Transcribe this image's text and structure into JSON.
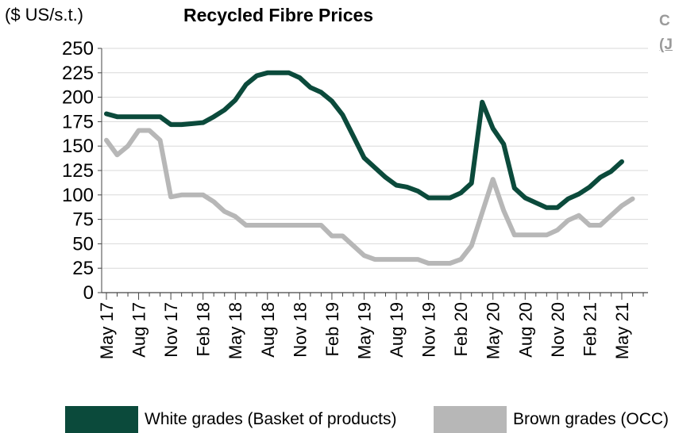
{
  "header": {
    "unit_label": "($ US/s.t.)",
    "title": "Recycled Fibre Prices",
    "side_title_line1": "C",
    "side_title_line2": "(J"
  },
  "colors": {
    "white_grades": "#0b4a3b",
    "brown_grades": "#b7b7b7",
    "grid": "#d9d9d9",
    "axis": "#444444"
  },
  "chart_data": {
    "type": "line",
    "title": "Recycled Fibre Prices",
    "ylabel": "($ US/s.t.)",
    "xlabel": "",
    "ylim": [
      0,
      250
    ],
    "yticks": [
      0,
      25,
      50,
      75,
      100,
      125,
      150,
      175,
      200,
      225,
      250
    ],
    "grid": true,
    "legend": "bottom",
    "x": [
      "May 17",
      "Jun 17",
      "Jul 17",
      "Aug 17",
      "Sep 17",
      "Oct 17",
      "Nov 17",
      "Dec 17",
      "Jan 18",
      "Feb 18",
      "Mar 18",
      "Apr 18",
      "May 18",
      "Jun 18",
      "Jul 18",
      "Aug 18",
      "Sep 18",
      "Oct 18",
      "Nov 18",
      "Dec 18",
      "Jan 19",
      "Feb 19",
      "Mar 19",
      "Apr 19",
      "May 19",
      "Jun 19",
      "Jul 19",
      "Aug 19",
      "Sep 19",
      "Oct 19",
      "Nov 19",
      "Dec 19",
      "Jan 20",
      "Feb 20",
      "Mar 20",
      "Apr 20",
      "May 20",
      "Jun 20",
      "Jul 20",
      "Aug 20",
      "Sep 20",
      "Oct 20",
      "Nov 20",
      "Dec 20",
      "Jan 21",
      "Feb 21",
      "Mar 21",
      "Apr 21",
      "May 21",
      "Jun 21",
      "Jul 21"
    ],
    "xtick_labels": [
      "May 17",
      "Aug 17",
      "Nov 17",
      "Feb 18",
      "May 18",
      "Aug 18",
      "Nov 18",
      "Feb 19",
      "May 19",
      "Aug 19",
      "Nov 19",
      "Feb 20",
      "May 20",
      "Aug 20",
      "Nov 20",
      "Feb 21",
      "May 21"
    ],
    "series": [
      {
        "name": "White grades (Basket of products)",
        "values": [
          183,
          180,
          180,
          180,
          180,
          180,
          172,
          172,
          173,
          174,
          180,
          187,
          197,
          213,
          222,
          225,
          225,
          225,
          220,
          210,
          205,
          196,
          182,
          160,
          138,
          128,
          118,
          110,
          108,
          104,
          97,
          97,
          97,
          102,
          112,
          195,
          168,
          152,
          107,
          97,
          92,
          87,
          87,
          96,
          101,
          108,
          118,
          124,
          134,
          null,
          null
        ]
      },
      {
        "name": "Brown grades (OCC)",
        "values": [
          156,
          141,
          150,
          166,
          166,
          156,
          98,
          100,
          100,
          100,
          93,
          83,
          78,
          69,
          69,
          69,
          69,
          69,
          69,
          69,
          69,
          58,
          58,
          48,
          38,
          34,
          34,
          34,
          34,
          34,
          30,
          30,
          30,
          34,
          48,
          82,
          116,
          84,
          59,
          59,
          59,
          59,
          64,
          74,
          79,
          69,
          69,
          79,
          89,
          96,
          null
        ]
      }
    ]
  },
  "legend": {
    "item1_label": "White grades (Basket of products)",
    "item2_label": "Brown grades (OCC)"
  }
}
